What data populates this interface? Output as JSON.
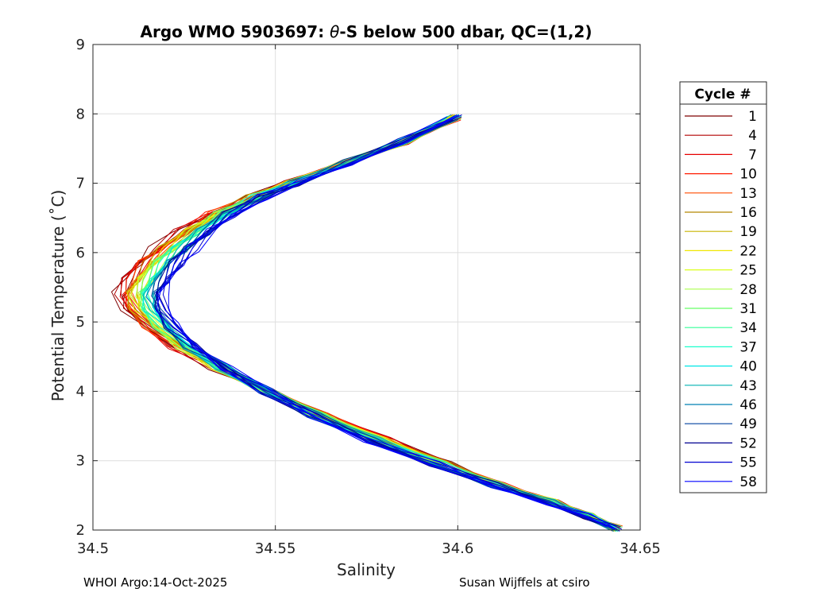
{
  "chart_data": {
    "type": "line",
    "title_prefix": "Argo WMO 5903697: ",
    "title_theta": "θ",
    "title_suffix": "-S below 500 dbar,  QC=(1,2)",
    "xlabel": "Salinity",
    "ylabel": "Potential Temperature (˚C)",
    "xlim": [
      34.5,
      34.65
    ],
    "ylim": [
      2,
      9
    ],
    "xticks": [
      "34.5",
      "34.55",
      "34.6",
      "34.65"
    ],
    "xtick_values": [
      34.5,
      34.55,
      34.6,
      34.65
    ],
    "yticks": [
      "2",
      "3",
      "4",
      "5",
      "6",
      "7",
      "8",
      "9"
    ],
    "ytick_values": [
      2,
      3,
      4,
      5,
      6,
      7,
      8,
      9
    ],
    "grid": true,
    "legend": {
      "title": "Cycle #",
      "placement": "right",
      "entries": [
        "1",
        "4",
        "7",
        "10",
        "13",
        "16",
        "19",
        "22",
        "25",
        "28",
        "31",
        "34",
        "37",
        "40",
        "43",
        "46",
        "49",
        "52",
        "55",
        "58"
      ],
      "colors": [
        "#7f0000",
        "#b20000",
        "#e60000",
        "#ff1a00",
        "#ff4d00",
        "#b38600",
        "#c8b400",
        "#f0e600",
        "#dcff1a",
        "#aaff4d",
        "#66ff66",
        "#33ff99",
        "#1affcc",
        "#00e6e6",
        "#00b3b3",
        "#0080b3",
        "#00409f",
        "#00008f",
        "#0000d0",
        "#0000ff"
      ]
    },
    "series_template": {
      "salinity": [
        34.599,
        34.585,
        34.57,
        34.555,
        34.545,
        34.535,
        34.528,
        34.522,
        34.518,
        34.515,
        34.513,
        34.514,
        34.518,
        34.525,
        34.535,
        34.548,
        34.562,
        34.578,
        34.595,
        34.61,
        34.625,
        34.635,
        34.643
      ],
      "temperature": [
        7.95,
        7.6,
        7.3,
        7.0,
        6.8,
        6.55,
        6.3,
        6.05,
        5.85,
        5.6,
        5.4,
        5.2,
        4.95,
        4.65,
        4.35,
        4.0,
        3.65,
        3.3,
        2.95,
        2.65,
        2.4,
        2.2,
        2.02
      ]
    }
  },
  "footer": {
    "left": "WHOI Argo:14-Oct-2025",
    "right": "Susan Wijffels at csiro"
  }
}
